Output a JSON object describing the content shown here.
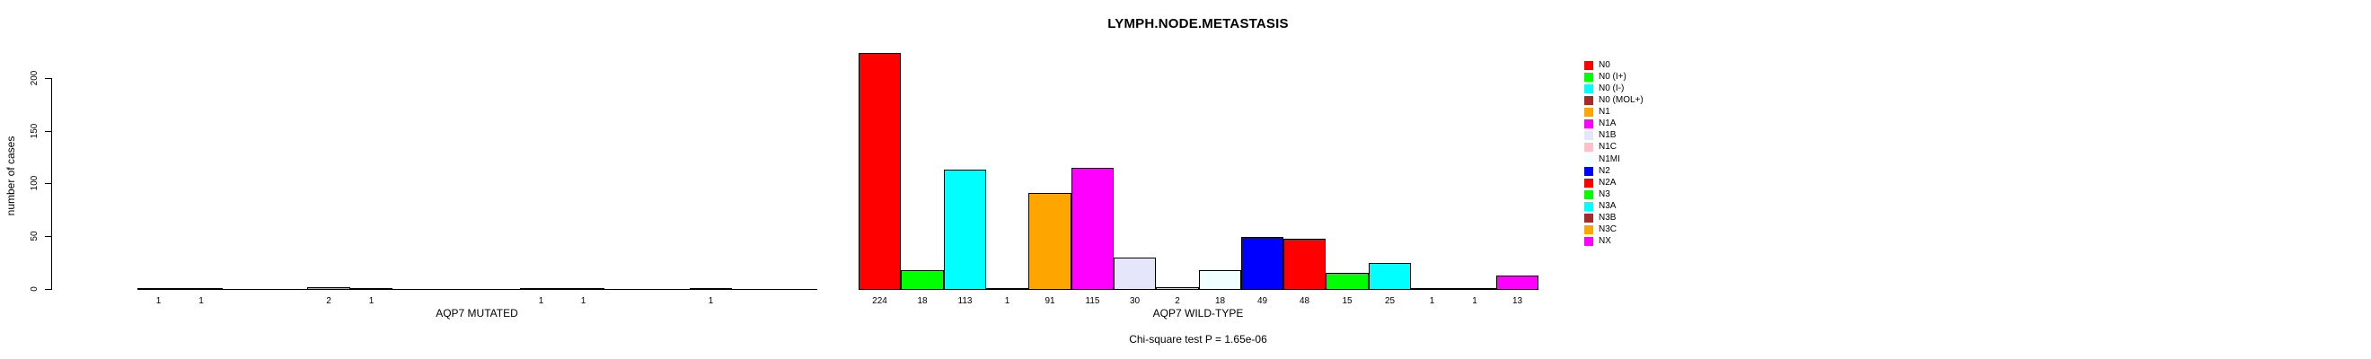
{
  "chart_data": {
    "type": "bar",
    "title": "LYMPH.NODE.METASTASIS",
    "ylabel": "number of cases",
    "xlabel": "",
    "ylim": [
      0,
      200
    ],
    "yticks": [
      0,
      50,
      100,
      150,
      200
    ],
    "grid": false,
    "legend_position": "right",
    "caption": "Chi-square test P = 1.65e-06",
    "categories": [
      "N0",
      "N0 (I+)",
      "N0 (I-)",
      "N0 (MOL+)",
      "N1",
      "N1A",
      "N1B",
      "N1C",
      "N1MI",
      "N2",
      "N2A",
      "N3",
      "N3A",
      "N3B",
      "N3C",
      "NX"
    ],
    "colors": [
      "#FF0000",
      "#00FF00",
      "#00FFFF",
      "#A52A2A",
      "#FFA500",
      "#FF00FF",
      "#E6E6FA",
      "#FFC0CB",
      "#F0FFFF",
      "#0000FF",
      "#FF0000",
      "#00FF00",
      "#00FFFF",
      "#A52A2A",
      "#FFA500",
      "#FF00FF"
    ],
    "groups": [
      {
        "label": "AQP7 MUTATED",
        "values": [
          1,
          1,
          0,
          0,
          2,
          1,
          0,
          0,
          0,
          1,
          1,
          0,
          0,
          1,
          0,
          0
        ]
      },
      {
        "label": "AQP7 WILD-TYPE",
        "values": [
          224,
          18,
          113,
          1,
          91,
          115,
          30,
          2,
          18,
          49,
          48,
          15,
          25,
          1,
          1,
          13
        ]
      }
    ]
  }
}
